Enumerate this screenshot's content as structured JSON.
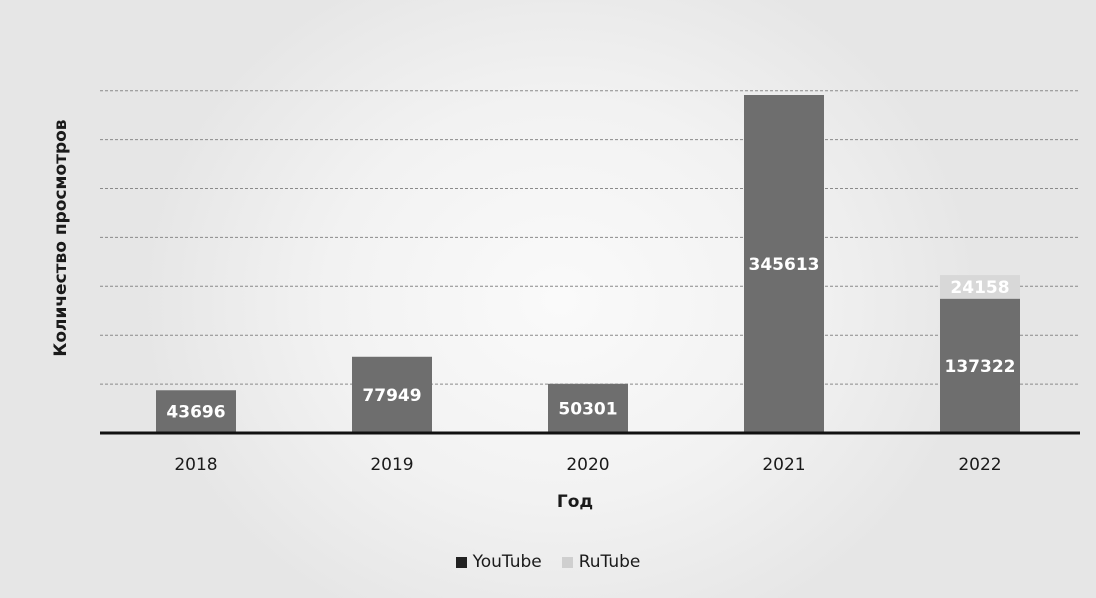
{
  "chart_data": {
    "type": "bar",
    "stacked": true,
    "categories": [
      "2018",
      "2019",
      "2020",
      "2021",
      "2022"
    ],
    "series": [
      {
        "name": "YouTube",
        "values": [
          43696,
          77949,
          50301,
          345613,
          137322
        ],
        "color": "#6e6e6e"
      },
      {
        "name": "RuTube",
        "values": [
          null,
          null,
          null,
          null,
          24158
        ],
        "color": "#d8d8d8"
      }
    ],
    "value_labels": {
      "YouTube": [
        "43696",
        "77949",
        "50301",
        "345613",
        "137322"
      ],
      "RuTube": [
        "",
        "",
        "",
        "",
        "24158"
      ]
    },
    "xlabel": "Год",
    "ylabel": "Количество просмотров",
    "ylim": [
      0,
      350000
    ],
    "grid": true,
    "legend_position": "bottom"
  }
}
